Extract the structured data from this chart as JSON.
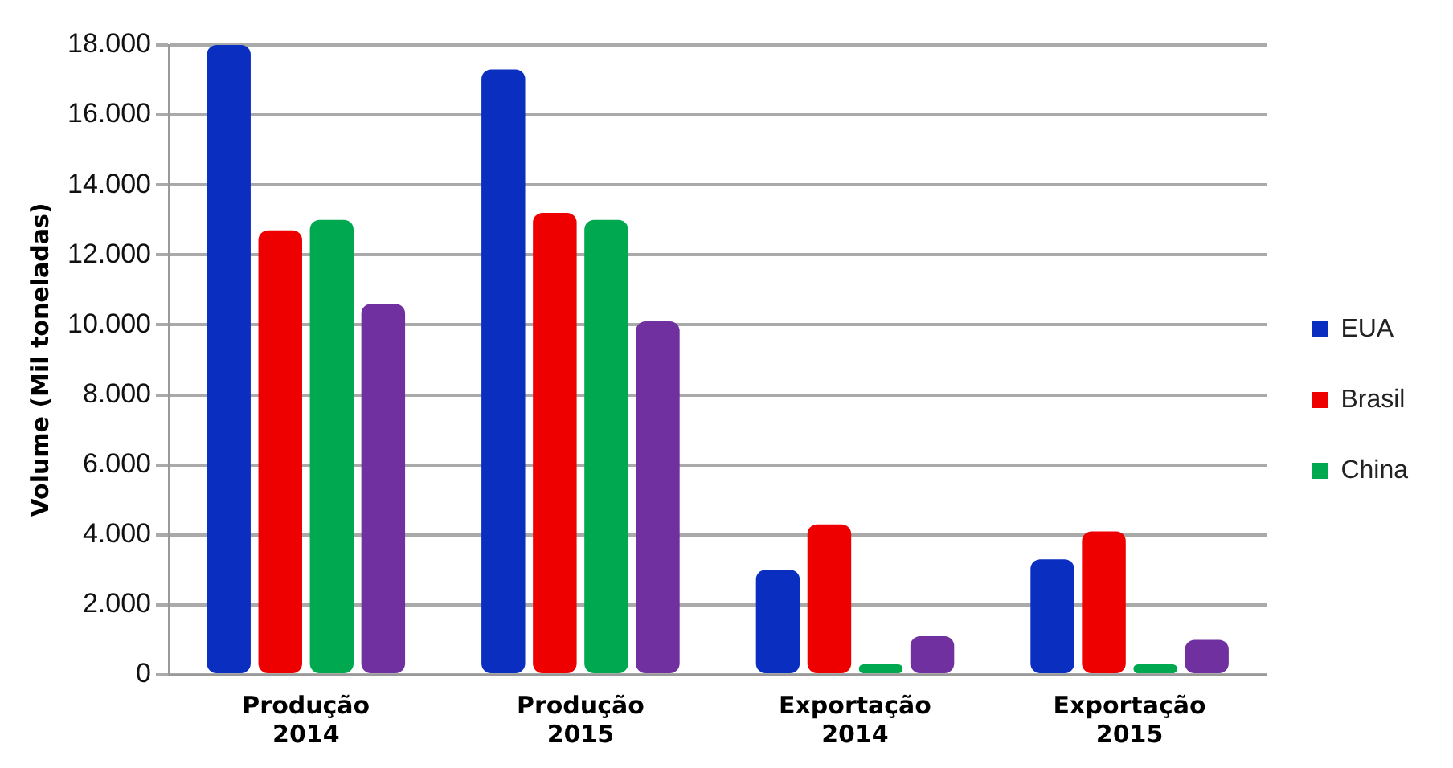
{
  "chart_data": {
    "type": "bar",
    "ylabel": "Volume (Mil toneladas)",
    "categories": [
      "Produção 2014",
      "Produção 2015",
      "Exportação 2014",
      "Exportação 2015"
    ],
    "series": [
      {
        "name": "EUA",
        "color": "#0a2fc0",
        "values": [
          18000,
          17300,
          3000,
          3300
        ]
      },
      {
        "name": "Brasil",
        "color": "#ee0000",
        "values": [
          12700,
          13200,
          4300,
          4100
        ]
      },
      {
        "name": "China",
        "color": "#00a850",
        "values": [
          13000,
          13000,
          300,
          300
        ]
      },
      {
        "color": "#7030a0",
        "values": [
          10600,
          10100,
          1100,
          1000
        ]
      }
    ],
    "ylim": [
      0,
      18000
    ],
    "yticks": [
      {
        "value": 0,
        "label": "0"
      },
      {
        "value": 2000,
        "label": "2.000"
      },
      {
        "value": 4000,
        "label": "4.000"
      },
      {
        "value": 6000,
        "label": "6.000"
      },
      {
        "value": 8000,
        "label": "8.000"
      },
      {
        "value": 10000,
        "label": "10.000"
      },
      {
        "value": 12000,
        "label": "12.000"
      },
      {
        "value": 14000,
        "label": "14.000"
      },
      {
        "value": 16000,
        "label": "16.000"
      },
      {
        "value": 18000,
        "label": "18.000"
      }
    ],
    "grid": "y",
    "legend": "right"
  }
}
